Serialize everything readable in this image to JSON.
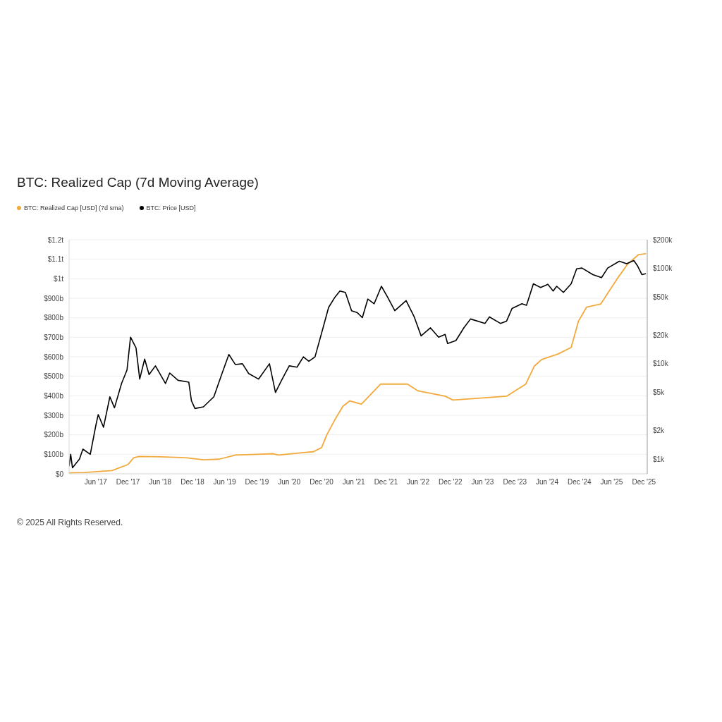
{
  "chart_data": {
    "type": "line",
    "title": "BTC: Realized Cap (7d Moving Average)",
    "annotations": [
      "© 2025 All Rights Reserved."
    ],
    "series": [
      {
        "name": "BTC: Realized Cap [USD] (7d sma)",
        "color": "#f2a93b",
        "axis": "y",
        "x": [
          "2017-01-01",
          "2017-04-01",
          "2017-09-01",
          "2017-12-01",
          "2018-01-01",
          "2018-02-01",
          "2018-06-01",
          "2018-11-01",
          "2019-02-01",
          "2019-05-01",
          "2019-08-01",
          "2019-12-01",
          "2020-03-01",
          "2020-04-01",
          "2020-09-01",
          "2020-10-15",
          "2020-12-01",
          "2021-01-01",
          "2021-02-15",
          "2021-04-01",
          "2021-05-10",
          "2021-07-15",
          "2021-11-01",
          "2022-04-01",
          "2022-06-01",
          "2022-11-01",
          "2022-12-15",
          "2023-07-01",
          "2023-10-15",
          "2024-02-01",
          "2024-03-20",
          "2024-05-01",
          "2024-08-01",
          "2024-10-15",
          "2024-11-25",
          "2025-01-10",
          "2025-04-01",
          "2025-07-01",
          "2025-09-01",
          "2025-11-01",
          "2025-12-10"
        ],
        "values": [
          5000000000.0,
          7000000000.0,
          17000000000.0,
          48000000000.0,
          82000000000.0,
          89000000000.0,
          87000000000.0,
          82000000000.0,
          72000000000.0,
          75000000000.0,
          96000000000.0,
          100000000000.0,
          103000000000.0,
          96000000000.0,
          110000000000.0,
          113000000000.0,
          134000000000.0,
          202000000000.0,
          278000000000.0,
          346000000000.0,
          374000000000.0,
          357000000000.0,
          460000000000.0,
          460000000000.0,
          425000000000.0,
          398000000000.0,
          378000000000.0,
          391000000000.0,
          398000000000.0,
          460000000000.0,
          552000000000.0,
          586000000000.0,
          614000000000.0,
          648000000000.0,
          782000000000.0,
          854000000000.0,
          871000000000.0,
          998000000000.0,
          1076000000000.0,
          1124000000000.0,
          1128000000000.0
        ]
      },
      {
        "name": "BTC: Price [USD]",
        "color": "#000000",
        "axis": "y2",
        "x": [
          "2017-01-01",
          "2017-01-10",
          "2017-01-20",
          "2017-03-01",
          "2017-03-20",
          "2017-05-01",
          "2017-06-01",
          "2017-06-15",
          "2017-07-15",
          "2017-08-20",
          "2017-09-15",
          "2017-10-25",
          "2017-11-25",
          "2017-12-15",
          "2018-01-15",
          "2018-02-05",
          "2018-03-05",
          "2018-03-30",
          "2018-05-05",
          "2018-07-01",
          "2018-07-25",
          "2018-09-10",
          "2018-11-10",
          "2018-11-25",
          "2018-12-15",
          "2019-02-01",
          "2019-04-01",
          "2019-05-15",
          "2019-06-25",
          "2019-08-01",
          "2019-09-10",
          "2019-10-15",
          "2019-12-10",
          "2020-02-10",
          "2020-03-15",
          "2020-04-20",
          "2020-06-01",
          "2020-07-15",
          "2020-08-20",
          "2020-09-20",
          "2020-10-25",
          "2020-12-10",
          "2021-01-10",
          "2021-02-15",
          "2021-03-15",
          "2021-04-15",
          "2021-05-20",
          "2021-06-20",
          "2021-07-20",
          "2021-08-20",
          "2021-09-25",
          "2021-11-05",
          "2021-12-10",
          "2022-01-20",
          "2022-03-25",
          "2022-05-10",
          "2022-06-18",
          "2022-08-10",
          "2022-09-25",
          "2022-11-01",
          "2022-11-15",
          "2023-01-01",
          "2023-02-15",
          "2023-03-25",
          "2023-06-15",
          "2023-07-10",
          "2023-09-10",
          "2023-10-15",
          "2023-11-15",
          "2024-01-10",
          "2024-02-05",
          "2024-03-15",
          "2024-04-25",
          "2024-06-05",
          "2024-07-05",
          "2024-07-25",
          "2024-09-01",
          "2024-10-15",
          "2024-11-15",
          "2024-12-15",
          "2025-02-15",
          "2025-04-05",
          "2025-05-10",
          "2025-07-15",
          "2025-08-25",
          "2025-10-05",
          "2025-10-25",
          "2025-11-20",
          "2025-12-10"
        ],
        "values": [
          850,
          1120,
          810,
          1000,
          1270,
          1120,
          2230,
          2930,
          2160,
          4500,
          3450,
          6200,
          8600,
          19000,
          14700,
          6900,
          11200,
          7700,
          9500,
          6200,
          8000,
          6700,
          6400,
          4090,
          3390,
          3530,
          4500,
          7700,
          12500,
          9800,
          10000,
          7900,
          6900,
          10000,
          5000,
          6800,
          9500,
          9200,
          11800,
          10600,
          11800,
          24000,
          39000,
          50000,
          58000,
          56000,
          36000,
          34500,
          30500,
          47700,
          42600,
          65000,
          50000,
          36000,
          46000,
          31000,
          19600,
          23800,
          19000,
          20300,
          16300,
          17500,
          23800,
          29500,
          26500,
          31000,
          26500,
          28000,
          38000,
          42600,
          41000,
          69000,
          63000,
          68000,
          58000,
          65000,
          56000,
          69000,
          99000,
          101000,
          86000,
          80000,
          101000,
          119000,
          112000,
          121000,
          107000,
          86000,
          88000
        ]
      }
    ],
    "xlim": [
      "2017-01-01",
      "2025-12-20"
    ],
    "xticks": [
      {
        "value": "2017-06-01",
        "label": "Jun '17"
      },
      {
        "value": "2017-12-01",
        "label": "Dec '17"
      },
      {
        "value": "2018-06-01",
        "label": "Jun '18"
      },
      {
        "value": "2018-12-01",
        "label": "Dec '18"
      },
      {
        "value": "2019-06-01",
        "label": "Jun '19"
      },
      {
        "value": "2019-12-01",
        "label": "Dec '19"
      },
      {
        "value": "2020-06-01",
        "label": "Jun '20"
      },
      {
        "value": "2020-12-01",
        "label": "Dec '20"
      },
      {
        "value": "2021-06-01",
        "label": "Jun '21"
      },
      {
        "value": "2021-12-01",
        "label": "Dec '21"
      },
      {
        "value": "2022-06-01",
        "label": "Jun '22"
      },
      {
        "value": "2022-12-01",
        "label": "Dec '22"
      },
      {
        "value": "2023-06-01",
        "label": "Jun '23"
      },
      {
        "value": "2023-12-01",
        "label": "Dec '23"
      },
      {
        "value": "2024-06-01",
        "label": "Jun '24"
      },
      {
        "value": "2024-12-01",
        "label": "Dec '24"
      },
      {
        "value": "2025-06-01",
        "label": "Jun '25"
      },
      {
        "value": "2025-12-01",
        "label": "Dec '25"
      }
    ],
    "ylim": [
      0,
      1200000000000.0
    ],
    "yticks": [
      {
        "value": 0,
        "label": "$0"
      },
      {
        "value": 100000000000.0,
        "label": "$100b"
      },
      {
        "value": 200000000000.0,
        "label": "$200b"
      },
      {
        "value": 300000000000.0,
        "label": "$300b"
      },
      {
        "value": 400000000000.0,
        "label": "$400b"
      },
      {
        "value": 500000000000.0,
        "label": "$500b"
      },
      {
        "value": 600000000000.0,
        "label": "$600b"
      },
      {
        "value": 700000000000.0,
        "label": "$700b"
      },
      {
        "value": 800000000000.0,
        "label": "$800b"
      },
      {
        "value": 900000000000.0,
        "label": "$900b"
      },
      {
        "value": 1000000000000.0,
        "label": "$1t"
      },
      {
        "value": 1100000000000.0,
        "label": "$1.1t"
      },
      {
        "value": 1200000000000.0,
        "label": "$1.2t"
      }
    ],
    "y2lim": [
      700,
      200000
    ],
    "y2ticks": [
      {
        "value": 1000,
        "label": "$1k"
      },
      {
        "value": 2000,
        "label": "$2k"
      },
      {
        "value": 5000,
        "label": "$5k"
      },
      {
        "value": 10000,
        "label": "$10k"
      },
      {
        "value": 20000,
        "label": "$20k"
      },
      {
        "value": 50000,
        "label": "$50k"
      },
      {
        "value": 100000,
        "label": "$100k"
      },
      {
        "value": 200000,
        "label": "$200k"
      }
    ],
    "log": "y2",
    "grid": "y",
    "legend": "top left",
    "marker": "none",
    "line_style": "solid"
  }
}
